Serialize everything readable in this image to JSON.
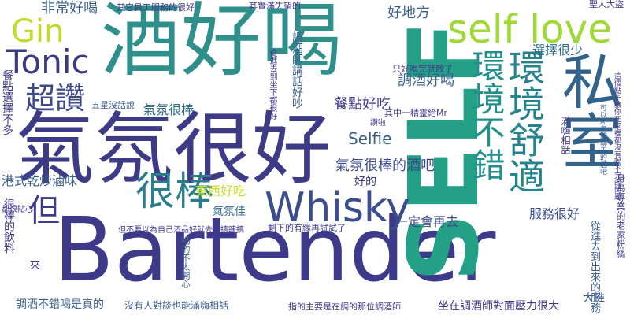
{
  "palette": {
    "indigo": "#3e3a8a",
    "blue": "#30588c",
    "steel": "#2f708e",
    "teal": "#238a8d",
    "sea": "#23a085",
    "green": "#3cb56f",
    "lime": "#84cc3b",
    "yellow": "#c5dd2b"
  },
  "words": [
    "Bartender",
    "酒好喝",
    "氣氛很好",
    "SELF",
    "私室",
    "環境舒適",
    "環境不錯",
    "self love",
    "Whisky",
    "Tonic",
    "Gin",
    "很棒",
    "超讚",
    "但",
    "好地方",
    "非常好喝",
    "Selfie",
    "氣氛很棒的酒吧",
    "餐點好吃",
    "調酒好喝",
    "選擇很少",
    "聖人大盜",
    "港式乾炒滷味",
    "東西好吃",
    "氣氛佳",
    "服務很好",
    "一定會再去",
    "好的",
    "很棒的飲料",
    "餐點選擇不多",
    "其它員工服務的很好",
    "其實滿失望的",
    "只好喝完就散了",
    "調酒師講話好吵",
    "五星沒話說",
    "氣氛很棒",
    "其中一精靈給Mr",
    "剩下的有緣再試試了",
    "但不要以為自己酒品好就去胡搞瞎搞",
    "喝的不太開心",
    "沒有人對談也能滿嗨相話",
    "指的主要是在調的那位調酒師",
    "坐在調酒師對面壓力很大",
    "大推",
    "調酒不錯喝是真的",
    "來",
    "都很貼心",
    "讚啦",
    "滿嗨相話",
    "從進去到坐下都很好",
    "身為專業的老家粉絲",
    "從進去到出來的服務",
    "這個點子讓你在家裡都沒有喝不完的問題",
    "可以和老闆聊天的酒吧"
  ]
}
